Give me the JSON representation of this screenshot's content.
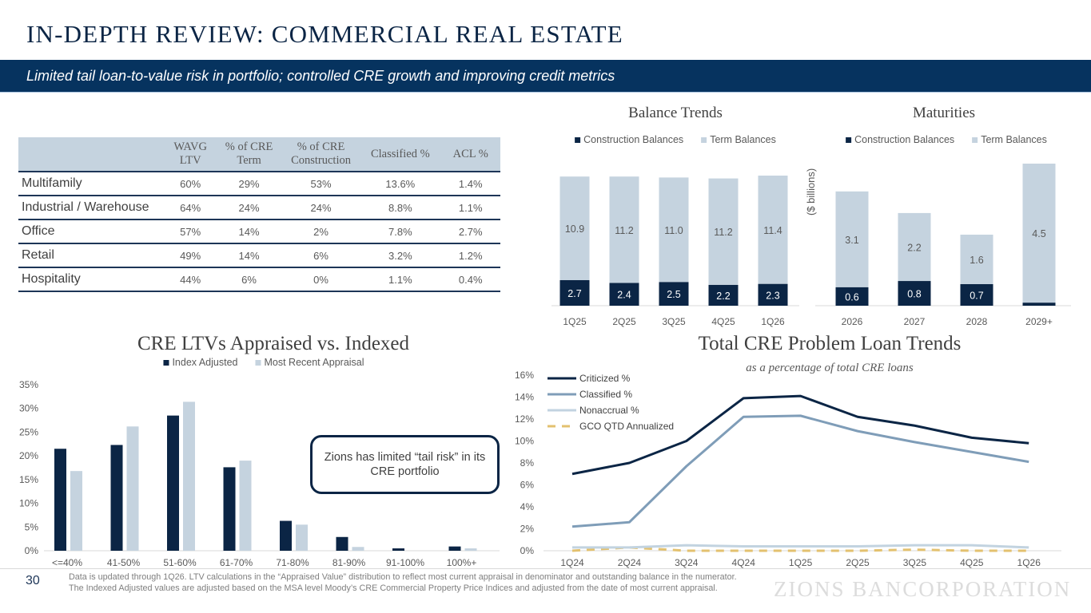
{
  "header": {
    "title": "IN-DEPTH REVIEW: COMMERCIAL REAL ESTATE",
    "subtitle": "Limited tail loan-to-value risk in portfolio; controlled CRE growth and improving credit metrics"
  },
  "colors": {
    "navy": "#0b2545",
    "banner": "#06335f",
    "light_blue": "#c5d3df",
    "mid_blue": "#7f9db8",
    "nonaccrual": "#c2d3e0",
    "gold": "#e3c16f"
  },
  "table": {
    "headers": [
      "",
      "WAVG LTV",
      "% of CRE Term",
      "% of CRE Construction",
      "Classified %",
      "ACL %"
    ],
    "header_lines": [
      [
        "",
        ""
      ],
      [
        "WAVG",
        "LTV"
      ],
      [
        "% of CRE",
        "Term"
      ],
      [
        "% of CRE",
        "Construction"
      ],
      [
        "Classified %",
        ""
      ],
      [
        "ACL %",
        ""
      ]
    ],
    "rows": [
      {
        "name": "Multifamily",
        "values": [
          "60%",
          "29%",
          "53%",
          "13.6%",
          "1.4%"
        ]
      },
      {
        "name": "Industrial / Warehouse",
        "values": [
          "64%",
          "24%",
          "24%",
          "8.8%",
          "1.1%"
        ]
      },
      {
        "name": "Office",
        "values": [
          "57%",
          "14%",
          "2%",
          "7.8%",
          "2.7%"
        ]
      },
      {
        "name": "Retail",
        "values": [
          "49%",
          "14%",
          "6%",
          "3.2%",
          "1.2%"
        ]
      },
      {
        "name": "Hospitality",
        "values": [
          "44%",
          "6%",
          "0%",
          "1.1%",
          "0.4%"
        ]
      }
    ]
  },
  "callout": {
    "text": "Zions has limited “tail risk” in its CRE portfolio"
  },
  "footer": {
    "page_number": "30",
    "footnote": "Data is updated through 1Q26. LTV calculations in the “Appraised Value” distribution to reflect most current appraisal in denominator and outstanding balance in the numerator. The Indexed Adjusted values are adjusted based on the MSA level Moody’s CRE Commercial Property Price Indices and adjusted from the date of most current appraisal.",
    "logo": "ZIONS BANCORPORATION"
  },
  "chart_data": [
    {
      "id": "balance_trends",
      "type": "bar",
      "stacked": true,
      "title": "Balance Trends",
      "categories": [
        "1Q25",
        "2Q25",
        "3Q25",
        "4Q25",
        "1Q26"
      ],
      "series": [
        {
          "name": "Construction Balances",
          "values": [
            2.7,
            2.4,
            2.5,
            2.2,
            2.3
          ],
          "color": "#0b2545"
        },
        {
          "name": "Term Balances",
          "values": [
            10.9,
            11.2,
            11.0,
            11.2,
            11.4
          ],
          "color": "#c5d3df"
        }
      ],
      "legend": "top",
      "ylim": [
        0,
        13.7
      ]
    },
    {
      "id": "maturities",
      "type": "bar",
      "stacked": true,
      "title": "Maturities",
      "ylabel": "($ billions)",
      "categories": [
        "2026",
        "2027",
        "2028",
        "2029+"
      ],
      "series": [
        {
          "name": "Construction Balances",
          "values": [
            0.6,
            0.8,
            0.7,
            0.1
          ],
          "color": "#0b2545"
        },
        {
          "name": "Term Balances",
          "values": [
            3.1,
            2.2,
            1.6,
            4.5
          ],
          "color": "#c5d3df"
        }
      ],
      "legend": "top",
      "ylim": [
        0,
        4.6
      ]
    },
    {
      "id": "ltv",
      "type": "bar",
      "title": "CRE LTVs Appraised vs. Indexed",
      "categories": [
        "<=40%",
        "41-50%",
        "51-60%",
        "61-70%",
        "71-80%",
        "81-90%",
        "91-100%",
        "100%+"
      ],
      "series": [
        {
          "name": "Index Adjusted",
          "values": [
            21.5,
            22.3,
            28.5,
            17.6,
            6.3,
            2.9,
            0.5,
            0.9
          ],
          "color": "#0b2545"
        },
        {
          "name": "Most Recent Appraisal",
          "values": [
            16.8,
            26.2,
            31.4,
            19.0,
            5.5,
            0.8,
            0.0,
            0.5
          ],
          "color": "#c5d3df"
        }
      ],
      "yticks": [
        "0%",
        "5%",
        "10%",
        "15%",
        "20%",
        "25%",
        "30%",
        "35%"
      ],
      "ylim": [
        0,
        35
      ],
      "legend": "top"
    },
    {
      "id": "problem_loans",
      "type": "line",
      "title": "Total CRE Problem Loan Trends",
      "subtitle": "as a percentage of total CRE loans",
      "categories": [
        "1Q24",
        "2Q24",
        "3Q24",
        "4Q24",
        "1Q25",
        "2Q25",
        "3Q25",
        "4Q25",
        "1Q26"
      ],
      "series": [
        {
          "name": "Criticized %",
          "values": [
            7.0,
            8.0,
            10.0,
            13.9,
            14.1,
            12.2,
            11.4,
            10.3,
            9.8
          ],
          "color": "#0b2545",
          "dash": false
        },
        {
          "name": "Classified %",
          "values": [
            2.2,
            2.6,
            7.7,
            12.2,
            12.3,
            10.9,
            9.9,
            9.0,
            8.1
          ],
          "color": "#7f9db8",
          "dash": false
        },
        {
          "name": "Nonaccrual %",
          "values": [
            0.3,
            0.3,
            0.5,
            0.4,
            0.4,
            0.4,
            0.5,
            0.5,
            0.3
          ],
          "color": "#c2d3e0",
          "dash": false
        },
        {
          "name": "GCO QTD Annualized",
          "values": [
            0.0,
            0.3,
            0.0,
            0.0,
            0.0,
            0.0,
            0.1,
            0.0,
            0.0
          ],
          "color": "#e3c16f",
          "dash": true
        }
      ],
      "yticks": [
        "0%",
        "2%",
        "4%",
        "6%",
        "8%",
        "10%",
        "12%",
        "14%",
        "16%"
      ],
      "ylim": [
        0,
        16
      ],
      "legend": "top-left"
    }
  ]
}
